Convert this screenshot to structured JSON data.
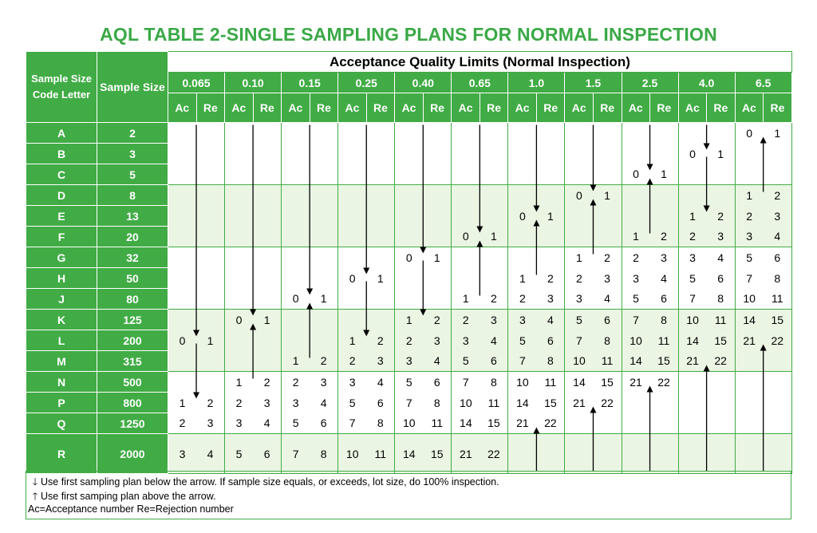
{
  "title": "AQL TABLE 2-SINGLE SAMPLING PLANS FOR NORMAL INSPECTION",
  "header": {
    "code_letter": "Sample Size Code Letter",
    "sample_size": "Sample Size",
    "aql_group": "Acceptance Quality Limits  (Normal Inspection)",
    "ac": "Ac",
    "re": "Re"
  },
  "aql_levels": [
    "0.065",
    "0.10",
    "0.15",
    "0.25",
    "0.40",
    "0.65",
    "1.0",
    "1.5",
    "2.5",
    "4.0",
    "6.5"
  ],
  "rows": [
    {
      "code": "A",
      "size": "2",
      "cells": [
        null,
        null,
        null,
        null,
        null,
        null,
        null,
        null,
        null,
        null,
        [
          "0",
          "1"
        ]
      ]
    },
    {
      "code": "B",
      "size": "3",
      "cells": [
        null,
        null,
        null,
        null,
        null,
        null,
        null,
        null,
        null,
        [
          "0",
          "1"
        ],
        null
      ]
    },
    {
      "code": "C",
      "size": "5",
      "cells": [
        null,
        null,
        null,
        null,
        null,
        null,
        null,
        null,
        [
          "0",
          "1"
        ],
        null,
        null
      ]
    },
    {
      "code": "D",
      "size": "8",
      "cells": [
        null,
        null,
        null,
        null,
        null,
        null,
        null,
        [
          "0",
          "1"
        ],
        null,
        null,
        [
          "1",
          "2"
        ]
      ]
    },
    {
      "code": "E",
      "size": "13",
      "cells": [
        null,
        null,
        null,
        null,
        null,
        null,
        [
          "0",
          "1"
        ],
        null,
        null,
        [
          "1",
          "2"
        ],
        [
          "2",
          "3"
        ]
      ]
    },
    {
      "code": "F",
      "size": "20",
      "cells": [
        null,
        null,
        null,
        null,
        null,
        [
          "0",
          "1"
        ],
        null,
        null,
        [
          "1",
          "2"
        ],
        [
          "2",
          "3"
        ],
        [
          "3",
          "4"
        ]
      ]
    },
    {
      "code": "G",
      "size": "32",
      "cells": [
        null,
        null,
        null,
        null,
        [
          "0",
          "1"
        ],
        null,
        null,
        [
          "1",
          "2"
        ],
        [
          "2",
          "3"
        ],
        [
          "3",
          "4"
        ],
        [
          "5",
          "6"
        ]
      ]
    },
    {
      "code": "H",
      "size": "50",
      "cells": [
        null,
        null,
        null,
        [
          "0",
          "1"
        ],
        null,
        null,
        [
          "1",
          "2"
        ],
        [
          "2",
          "3"
        ],
        [
          "3",
          "4"
        ],
        [
          "5",
          "6"
        ],
        [
          "7",
          "8"
        ]
      ]
    },
    {
      "code": "J",
      "size": "80",
      "cells": [
        null,
        null,
        [
          "0",
          "1"
        ],
        null,
        null,
        [
          "1",
          "2"
        ],
        [
          "2",
          "3"
        ],
        [
          "3",
          "4"
        ],
        [
          "5",
          "6"
        ],
        [
          "7",
          "8"
        ],
        [
          "10",
          "11"
        ]
      ]
    },
    {
      "code": "K",
      "size": "125",
      "cells": [
        null,
        [
          "0",
          "1"
        ],
        null,
        null,
        [
          "1",
          "2"
        ],
        [
          "2",
          "3"
        ],
        [
          "3",
          "4"
        ],
        [
          "5",
          "6"
        ],
        [
          "7",
          "8"
        ],
        [
          "10",
          "11"
        ],
        [
          "14",
          "15"
        ]
      ]
    },
    {
      "code": "L",
      "size": "200",
      "cells": [
        [
          "0",
          "1"
        ],
        null,
        null,
        [
          "1",
          "2"
        ],
        [
          "2",
          "3"
        ],
        [
          "3",
          "4"
        ],
        [
          "5",
          "6"
        ],
        [
          "7",
          "8"
        ],
        [
          "10",
          "11"
        ],
        [
          "14",
          "15"
        ],
        [
          "21",
          "22"
        ]
      ]
    },
    {
      "code": "M",
      "size": "315",
      "cells": [
        null,
        null,
        [
          "1",
          "2"
        ],
        [
          "2",
          "3"
        ],
        [
          "3",
          "4"
        ],
        [
          "5",
          "6"
        ],
        [
          "7",
          "8"
        ],
        [
          "10",
          "11"
        ],
        [
          "14",
          "15"
        ],
        [
          "21",
          "22"
        ],
        null
      ]
    },
    {
      "code": "N",
      "size": "500",
      "cells": [
        null,
        [
          "1",
          "2"
        ],
        [
          "2",
          "3"
        ],
        [
          "3",
          "4"
        ],
        [
          "5",
          "6"
        ],
        [
          "7",
          "8"
        ],
        [
          "10",
          "11"
        ],
        [
          "14",
          "15"
        ],
        [
          "21",
          "22"
        ],
        null,
        null
      ]
    },
    {
      "code": "P",
      "size": "800",
      "cells": [
        [
          "1",
          "2"
        ],
        [
          "2",
          "3"
        ],
        [
          "3",
          "4"
        ],
        [
          "5",
          "6"
        ],
        [
          "7",
          "8"
        ],
        [
          "10",
          "11"
        ],
        [
          "14",
          "15"
        ],
        [
          "21",
          "22"
        ],
        null,
        null,
        null
      ]
    },
    {
      "code": "Q",
      "size": "1250",
      "cells": [
        [
          "2",
          "3"
        ],
        [
          "3",
          "4"
        ],
        [
          "5",
          "6"
        ],
        [
          "7",
          "8"
        ],
        [
          "10",
          "11"
        ],
        [
          "14",
          "15"
        ],
        [
          "21",
          "22"
        ],
        null,
        null,
        null,
        null
      ]
    },
    {
      "code": "R",
      "size": "2000",
      "cells": [
        [
          "3",
          "4"
        ],
        [
          "5",
          "6"
        ],
        [
          "7",
          "8"
        ],
        [
          "10",
          "11"
        ],
        [
          "14",
          "15"
        ],
        [
          "21",
          "22"
        ],
        null,
        null,
        null,
        null,
        null
      ]
    }
  ],
  "arrows": [
    {
      "col": 0,
      "dir": "down",
      "from": "A",
      "to": "L"
    },
    {
      "col": 0,
      "dir": "down",
      "from": "L",
      "to": "P"
    },
    {
      "col": 1,
      "dir": "down",
      "from": "A",
      "to": "K"
    },
    {
      "col": 1,
      "dir": "up",
      "from": "K",
      "to": "N"
    },
    {
      "col": 2,
      "dir": "down",
      "from": "A",
      "to": "J"
    },
    {
      "col": 2,
      "dir": "up",
      "from": "J",
      "to": "M"
    },
    {
      "col": 3,
      "dir": "down",
      "from": "A",
      "to": "H"
    },
    {
      "col": 3,
      "dir": "down",
      "from": "H",
      "to": "L"
    },
    {
      "col": 4,
      "dir": "down",
      "from": "A",
      "to": "G"
    },
    {
      "col": 4,
      "dir": "down",
      "from": "G",
      "to": "K"
    },
    {
      "col": 5,
      "dir": "down",
      "from": "A",
      "to": "F"
    },
    {
      "col": 5,
      "dir": "up",
      "from": "F",
      "to": "J"
    },
    {
      "col": 6,
      "dir": "down",
      "from": "A",
      "to": "E"
    },
    {
      "col": 6,
      "dir": "up",
      "from": "E",
      "to": "H"
    },
    {
      "col": 6,
      "dir": "up",
      "from": "Q",
      "to": "end"
    },
    {
      "col": 7,
      "dir": "down",
      "from": "A",
      "to": "D"
    },
    {
      "col": 7,
      "dir": "up",
      "from": "D",
      "to": "G"
    },
    {
      "col": 7,
      "dir": "up",
      "from": "P",
      "to": "end"
    },
    {
      "col": 8,
      "dir": "down",
      "from": "A",
      "to": "C"
    },
    {
      "col": 8,
      "dir": "up",
      "from": "C",
      "to": "F"
    },
    {
      "col": 8,
      "dir": "up",
      "from": "N",
      "to": "end"
    },
    {
      "col": 9,
      "dir": "down",
      "from": "A",
      "to": "B"
    },
    {
      "col": 9,
      "dir": "down",
      "from": "B",
      "to": "E"
    },
    {
      "col": 9,
      "dir": "up",
      "from": "M",
      "to": "end"
    },
    {
      "col": 10,
      "dir": "up",
      "from": "A",
      "to": "D"
    },
    {
      "col": 10,
      "dir": "up",
      "from": "L",
      "to": "end"
    }
  ],
  "notes": {
    "down": "Use first sampling plan below the arrow. If sample size equals, or exceeds, lot size, do 100% inspection.",
    "up": "Use first samping plan above the arrow.",
    "legend": "Ac=Acceptance number  Re=Rejection number"
  },
  "colors": {
    "accent": "#41ac45",
    "title": "#3aa946",
    "band": "#eaf5e3"
  }
}
